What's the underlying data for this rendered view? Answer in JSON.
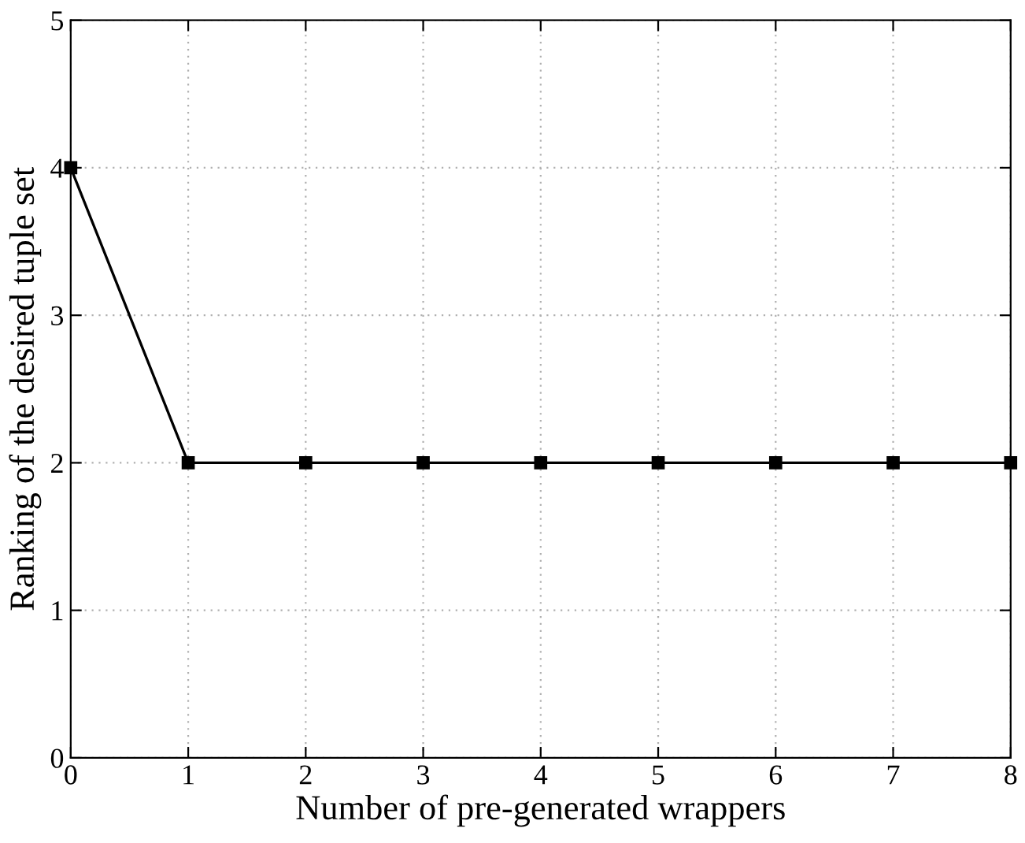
{
  "chart_data": {
    "type": "line",
    "xlabel": "Number of pre-generated wrappers",
    "ylabel": "Ranking of the desired tuple set",
    "x": [
      0,
      1,
      2,
      3,
      4,
      5,
      6,
      7,
      8
    ],
    "series": [
      {
        "color": "#000000",
        "values": [
          4,
          2,
          2,
          2,
          2,
          2,
          2,
          2,
          2
        ]
      }
    ],
    "xlim": [
      0,
      8
    ],
    "ylim": [
      0,
      5
    ],
    "xticks": [
      0,
      1,
      2,
      3,
      4,
      5,
      6,
      7,
      8
    ],
    "yticks": [
      0,
      1,
      2,
      3,
      4,
      5
    ],
    "grid": true,
    "marker": "square",
    "line_style": "solid",
    "legend": false
  }
}
